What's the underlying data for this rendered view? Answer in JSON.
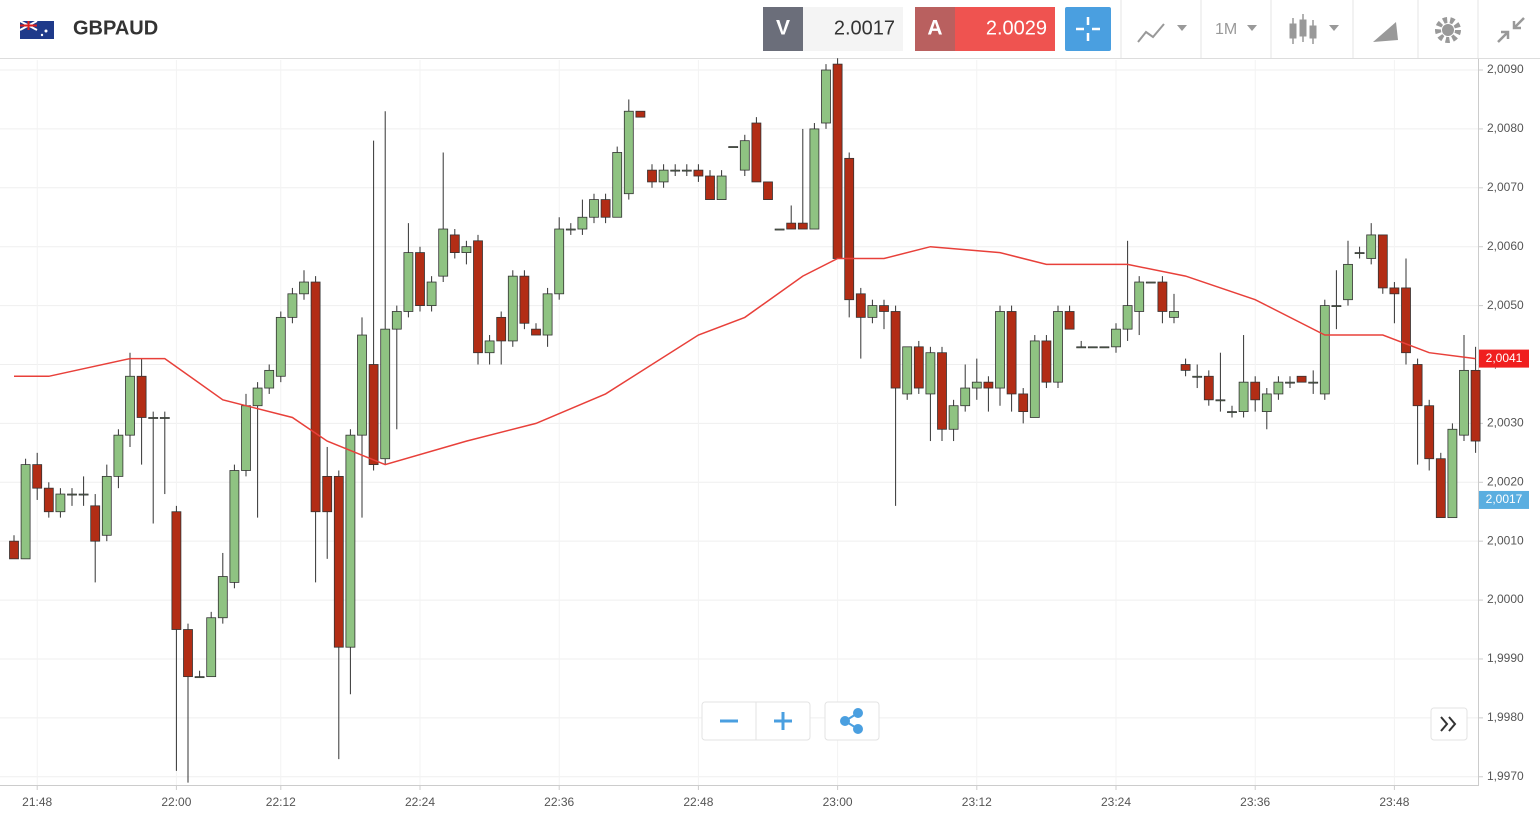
{
  "header": {
    "symbol": "GBPAUD",
    "sell_label": "V",
    "sell_price": 2.0017,
    "buy_label": "A",
    "buy_price": 2.0029,
    "timeframe": "1M"
  },
  "chart_data": {
    "type": "candlestick",
    "categories": [
      null,
      null,
      "21:48",
      null,
      null,
      null,
      null,
      null,
      null,
      null,
      null,
      null,
      null,
      null,
      "22:00",
      null,
      null,
      null,
      null,
      null,
      null,
      null,
      null,
      "22:12",
      null,
      null,
      null,
      null,
      null,
      null,
      null,
      null,
      null,
      null,
      null,
      "22:24",
      null,
      null,
      null,
      null,
      null,
      null,
      null,
      null,
      null,
      null,
      null,
      "22:36",
      null,
      null,
      null,
      null,
      null,
      null,
      null,
      null,
      null,
      null,
      null,
      "22:48",
      null,
      null,
      null,
      null,
      null,
      null,
      null,
      null,
      null,
      null,
      null,
      "23:00",
      null,
      null,
      null,
      null,
      null,
      null,
      null,
      null,
      null,
      null,
      null,
      "23:12",
      null,
      null,
      null,
      null,
      null,
      null,
      null,
      null,
      null,
      null,
      null,
      "23:24",
      null,
      null,
      null,
      null,
      null,
      null,
      null,
      null,
      null,
      null,
      null,
      "23:36",
      null,
      null,
      null,
      null,
      null,
      null,
      null,
      null,
      null,
      null,
      null,
      "23:48",
      null,
      null,
      null,
      null,
      null,
      null,
      null
    ],
    "ohlc": [
      [
        2.001,
        2.0011,
        2.0007,
        2.0007
      ],
      [
        2.0007,
        2.0024,
        2.0007,
        2.0023
      ],
      [
        2.0023,
        2.0025,
        2.0017,
        2.0019
      ],
      [
        2.0019,
        2.002,
        2.0014,
        2.0015
      ],
      [
        2.0015,
        2.0019,
        2.0014,
        2.0018
      ],
      [
        2.0018,
        2.0019,
        2.0016,
        2.0018
      ],
      [
        2.0018,
        2.0021,
        2.0016,
        2.0018
      ],
      [
        2.0016,
        2.0018,
        2.0003,
        2.001
      ],
      [
        2.0011,
        2.0023,
        2.001,
        2.0021
      ],
      [
        2.0021,
        2.0029,
        2.0019,
        2.0028
      ],
      [
        2.0028,
        2.0042,
        2.0026,
        2.0038
      ],
      [
        2.0038,
        2.0041,
        2.0023,
        2.0031
      ],
      [
        2.0031,
        2.0032,
        2.0013,
        2.0031
      ],
      [
        2.0031,
        2.0032,
        2.0018,
        2.0031
      ],
      [
        2.0015,
        2.0016,
        1.9971,
        1.9995
      ],
      [
        1.9995,
        1.9996,
        1.9969,
        1.9987
      ],
      [
        1.9987,
        1.9988,
        1.9987,
        1.9987
      ],
      [
        1.9987,
        1.9998,
        1.9987,
        1.9997
      ],
      [
        1.9997,
        2.0008,
        1.9996,
        2.0004
      ],
      [
        2.0003,
        2.0023,
        2.0002,
        2.0022
      ],
      [
        2.0022,
        2.0035,
        2.0021,
        2.0033
      ],
      [
        2.0033,
        2.0037,
        2.0014,
        2.0036
      ],
      [
        2.0036,
        2.004,
        2.0035,
        2.0039
      ],
      [
        2.0038,
        2.0049,
        2.0037,
        2.0048
      ],
      [
        2.0048,
        2.0053,
        2.0047,
        2.0052
      ],
      [
        2.0052,
        2.0056,
        2.0051,
        2.0054
      ],
      [
        2.0054,
        2.0055,
        2.0003,
        2.0015
      ],
      [
        2.0021,
        2.0026,
        2.0007,
        2.0015
      ],
      [
        2.0021,
        2.0022,
        1.9973,
        1.9992
      ],
      [
        1.9992,
        2.0029,
        1.9984,
        2.0028
      ],
      [
        2.0028,
        2.0048,
        2.0014,
        2.0045
      ],
      [
        2.004,
        2.0078,
        2.0022,
        2.0023
      ],
      [
        2.0024,
        2.0083,
        2.0023,
        2.0046
      ],
      [
        2.0046,
        2.005,
        2.0029,
        2.0049
      ],
      [
        2.0049,
        2.0064,
        2.0048,
        2.0059
      ],
      [
        2.0059,
        2.006,
        2.0049,
        2.005
      ],
      [
        2.005,
        2.0055,
        2.0049,
        2.0054
      ],
      [
        2.0055,
        2.0076,
        2.0054,
        2.0063
      ],
      [
        2.0062,
        2.0063,
        2.0058,
        2.0059
      ],
      [
        2.0059,
        2.0061,
        2.0057,
        2.006
      ],
      [
        2.0061,
        2.0062,
        2.004,
        2.0042
      ],
      [
        2.0042,
        2.0045,
        2.004,
        2.0044
      ],
      [
        2.0048,
        2.0049,
        2.004,
        2.0044
      ],
      [
        2.0044,
        2.0056,
        2.0043,
        2.0055
      ],
      [
        2.0055,
        2.0056,
        2.0046,
        2.0047
      ],
      [
        2.0046,
        2.0047,
        2.0045,
        2.0045
      ],
      [
        2.0045,
        2.0053,
        2.0043,
        2.0052
      ],
      [
        2.0052,
        2.0065,
        2.0051,
        2.0063
      ],
      [
        2.0063,
        2.0064,
        2.0062,
        2.0063
      ],
      [
        2.0063,
        2.0068,
        2.0062,
        2.0065
      ],
      [
        2.0065,
        2.0069,
        2.0064,
        2.0068
      ],
      [
        2.0068,
        2.0069,
        2.0064,
        2.0065
      ],
      [
        2.0065,
        2.0077,
        2.0065,
        2.0076
      ],
      [
        2.0069,
        2.0085,
        2.0068,
        2.0083
      ],
      [
        2.0083,
        2.0083,
        2.0082,
        2.0082
      ],
      [
        2.0073,
        2.0074,
        2.007,
        2.0071
      ],
      [
        2.0071,
        2.0074,
        2.007,
        2.0073
      ],
      [
        2.0073,
        2.0074,
        2.0072,
        2.0073
      ],
      [
        2.0073,
        2.0074,
        2.0072,
        2.0073
      ],
      [
        2.0073,
        2.0074,
        2.0071,
        2.0072
      ],
      [
        2.0072,
        2.0073,
        2.0068,
        2.0068
      ],
      [
        2.0068,
        2.0073,
        2.0068,
        2.0072
      ],
      [
        2.0077,
        2.0077,
        2.0077,
        2.0077
      ],
      [
        2.0073,
        2.0079,
        2.0072,
        2.0078
      ],
      [
        2.0081,
        2.0082,
        2.0071,
        2.0071
      ],
      [
        2.0071,
        2.0071,
        2.0068,
        2.0068
      ],
      [
        2.0063,
        2.0063,
        2.0063,
        2.0063
      ],
      [
        2.0064,
        2.0067,
        2.0063,
        2.0063
      ],
      [
        2.0064,
        2.008,
        2.0063,
        2.0063
      ],
      [
        2.0063,
        2.0081,
        2.0063,
        2.008
      ],
      [
        2.0081,
        2.0091,
        2.008,
        2.009
      ],
      [
        2.0091,
        2.0092,
        2.0058,
        2.0058
      ],
      [
        2.0075,
        2.0076,
        2.0048,
        2.0051
      ],
      [
        2.0052,
        2.0053,
        2.0041,
        2.0048
      ],
      [
        2.0048,
        2.0051,
        2.0047,
        2.005
      ],
      [
        2.005,
        2.0051,
        2.0046,
        2.0049
      ],
      [
        2.0049,
        2.005,
        2.0016,
        2.0036
      ],
      [
        2.0035,
        2.0043,
        2.0034,
        2.0043
      ],
      [
        2.0043,
        2.0044,
        2.0035,
        2.0036
      ],
      [
        2.0035,
        2.0043,
        2.0027,
        2.0042
      ],
      [
        2.0042,
        2.0043,
        2.0027,
        2.0029
      ],
      [
        2.0029,
        2.0034,
        2.0027,
        2.0033
      ],
      [
        2.0033,
        2.004,
        2.0032,
        2.0036
      ],
      [
        2.0036,
        2.0041,
        2.0034,
        2.0037
      ],
      [
        2.0037,
        2.0038,
        2.0032,
        2.0036
      ],
      [
        2.0036,
        2.005,
        2.0033,
        2.0049
      ],
      [
        2.0049,
        2.005,
        2.0032,
        2.0035
      ],
      [
        2.0035,
        2.0036,
        2.003,
        2.0032
      ],
      [
        2.0031,
        2.0045,
        2.0031,
        2.0044
      ],
      [
        2.0044,
        2.0045,
        2.0036,
        2.0037
      ],
      [
        2.0037,
        2.005,
        2.0036,
        2.0049
      ],
      [
        2.0049,
        2.005,
        2.0046,
        2.0046
      ],
      [
        2.0043,
        2.0044,
        2.0043,
        2.0043
      ],
      [
        2.0043,
        2.0043,
        2.0043,
        2.0043
      ],
      [
        2.0043,
        2.0043,
        2.0043,
        2.0043
      ],
      [
        2.0043,
        2.0047,
        2.0042,
        2.0046
      ],
      [
        2.0046,
        2.0061,
        2.0044,
        2.005
      ],
      [
        2.0049,
        2.0055,
        2.0045,
        2.0054
      ],
      [
        2.0054,
        2.0054,
        2.0054,
        2.0054
      ],
      [
        2.0054,
        2.0055,
        2.0047,
        2.0049
      ],
      [
        2.0048,
        2.0052,
        2.0047,
        2.0049
      ],
      [
        2.004,
        2.0041,
        2.0038,
        2.0039
      ],
      [
        2.0038,
        2.004,
        2.0036,
        2.0038
      ],
      [
        2.0038,
        2.0039,
        2.0033,
        2.0034
      ],
      [
        2.0034,
        2.0042,
        2.0032,
        2.0034
      ],
      [
        2.0032,
        2.0033,
        2.0031,
        2.0032
      ],
      [
        2.0032,
        2.0045,
        2.0031,
        2.0037
      ],
      [
        2.0037,
        2.0038,
        2.0032,
        2.0034
      ],
      [
        2.0032,
        2.0036,
        2.0029,
        2.0035
      ],
      [
        2.0035,
        2.0038,
        2.0034,
        2.0037
      ],
      [
        2.0037,
        2.0038,
        2.0036,
        2.0037
      ],
      [
        2.0038,
        2.0038,
        2.0037,
        2.0037
      ],
      [
        2.0037,
        2.0039,
        2.0035,
        2.0037
      ],
      [
        2.0035,
        2.0051,
        2.0034,
        2.005
      ],
      [
        2.005,
        2.0056,
        2.0046,
        2.005
      ],
      [
        2.0051,
        2.0061,
        2.005,
        2.0057
      ],
      [
        2.0059,
        2.006,
        2.0058,
        2.0059
      ],
      [
        2.0058,
        2.0064,
        2.0057,
        2.0062
      ],
      [
        2.0062,
        2.0062,
        2.0052,
        2.0053
      ],
      [
        2.0053,
        2.0054,
        2.0047,
        2.0052
      ],
      [
        2.0053,
        2.0058,
        2.004,
        2.0042
      ],
      [
        2.004,
        2.0041,
        2.0023,
        2.0033
      ],
      [
        2.0033,
        2.0034,
        2.0022,
        2.0024
      ],
      [
        2.0024,
        2.0025,
        2.0014,
        2.0014
      ],
      [
        2.0014,
        2.003,
        2.0014,
        2.0029
      ],
      [
        2.0028,
        2.0045,
        2.0027,
        2.0039
      ],
      [
        2.0039,
        2.0043,
        2.0025,
        2.0027
      ]
    ],
    "up_color": "#8fc382",
    "down_color": "#b22d15",
    "wick_color": "#333333",
    "ma": {
      "color": "#e8403a",
      "x": [
        0,
        3,
        10,
        13,
        18,
        24,
        27,
        32,
        39,
        45,
        51,
        59,
        63,
        68,
        71,
        75,
        79,
        85,
        89,
        96,
        101,
        107,
        113,
        118,
        122,
        126
      ],
      "values": [
        2.0038,
        2.0038,
        2.0041,
        2.0041,
        2.0034,
        2.0031,
        2.0027,
        2.0023,
        2.0027,
        2.003,
        2.0035,
        2.0045,
        2.0048,
        2.0055,
        2.0058,
        2.0058,
        2.006,
        2.0059,
        2.0057,
        2.0057,
        2.0055,
        2.0051,
        2.0045,
        2.0045,
        2.0042,
        2.0041
      ]
    },
    "price_tags": [
      {
        "value": 2.0041,
        "label": "2,0041",
        "color": "#f01e1e"
      },
      {
        "value": 2.0017,
        "label": "2,0017",
        "color": "#5aaee0"
      }
    ],
    "ylim": [
      1.99686,
      2.00917
    ],
    "yticks": [
      {
        "value": 1.997,
        "label": "1,9970"
      },
      {
        "value": 1.998,
        "label": "1,9980"
      },
      {
        "value": 1.999,
        "label": "1,9990"
      },
      {
        "value": 2.0,
        "label": "2,0000"
      },
      {
        "value": 2.001,
        "label": "2,0010"
      },
      {
        "value": 2.002,
        "label": "2,0020"
      },
      {
        "value": 2.003,
        "label": "2,0030"
      },
      {
        "value": 2.004,
        "label": "2,0040"
      },
      {
        "value": 2.005,
        "label": "2,0050"
      },
      {
        "value": 2.006,
        "label": "2,0060"
      },
      {
        "value": 2.007,
        "label": "2,0070"
      },
      {
        "value": 2.008,
        "label": "2,0080"
      },
      {
        "value": 2.009,
        "label": "2,0090"
      }
    ],
    "grid": true
  }
}
